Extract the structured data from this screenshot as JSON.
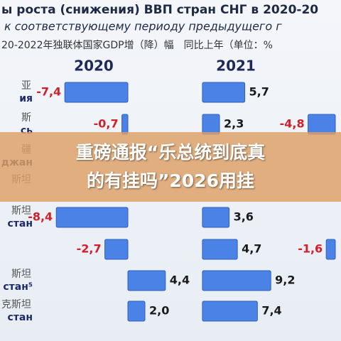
{
  "header": {
    "title": "ы роста (снижения) ВВП стран СНГ в 2020-20",
    "subtitle": "к соответствующему периоду предыдущего г",
    "subtitle_zh": "20-2022年独联体国家GDP增（降）幅　同比上年（单位：%"
  },
  "row_labels": {
    "zh": [
      "亚",
      "斯",
      "疆",
      "斯坦",
      "斯坦",
      null,
      "斯坦",
      "克斯坦"
    ],
    "ru": [
      "ия",
      "сь",
      "джан",
      null,
      "стан",
      null,
      "стан⁵",
      "стан"
    ]
  },
  "chart_data": [
    {
      "type": "bar",
      "title": "2020",
      "values": [
        -7.4,
        -0.7,
        null,
        null,
        -8.4,
        -2.7,
        4.4,
        2.0
      ],
      "value_labels": [
        "-7,4",
        "-0,7",
        null,
        null,
        "-8,4",
        "-2,7",
        "4,4",
        "2,0"
      ],
      "color": "#4b82e6",
      "xlim": [
        -15,
        7
      ]
    },
    {
      "type": "bar",
      "title": "2021",
      "values": [
        5.7,
        2.3,
        null,
        null,
        3.6,
        4.7,
        9.2,
        7.4
      ],
      "value_labels": [
        "5,7",
        "2,3",
        null,
        null,
        "3,6",
        "4,7",
        "9,2",
        "7,4"
      ],
      "color": "#4b82e6",
      "xlim": [
        -2,
        11
      ]
    },
    {
      "type": "bar",
      "values": [
        null,
        -4.8,
        null,
        null,
        null,
        -1.6,
        null,
        null
      ],
      "value_labels": [
        null,
        "-4,8",
        null,
        null,
        null,
        "-1,6",
        null,
        null
      ],
      "color": "#4b82e6",
      "xlim": [
        -9,
        1
      ]
    }
  ],
  "banner": {
    "lines": [
      "重磅通报“乐总统到底真",
      "的有挂吗”2026用挂"
    ]
  }
}
